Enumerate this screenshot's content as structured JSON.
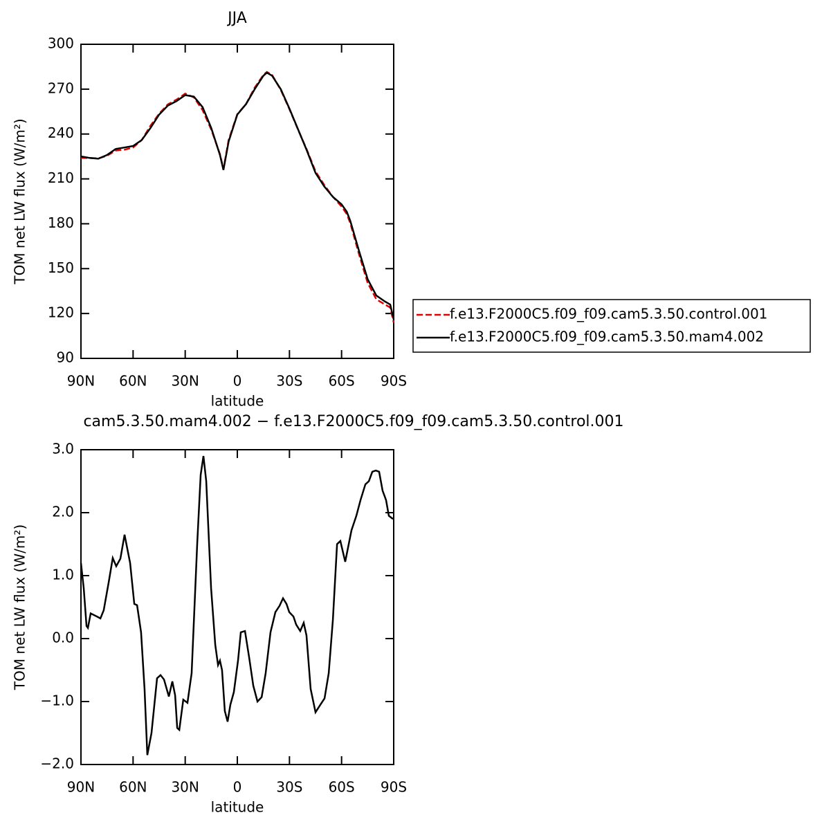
{
  "chart_data": [
    {
      "type": "line",
      "title": "JJA",
      "xlabel": "latitude",
      "ylabel": "TOM net LW flux (W/m²)",
      "xlim": [
        90,
        -90
      ],
      "xticks": [
        {
          "value": 90,
          "label": "90N"
        },
        {
          "value": 60,
          "label": "60N"
        },
        {
          "value": 30,
          "label": "30N"
        },
        0,
        {
          "value": -30,
          "label": "30S"
        },
        {
          "value": -60,
          "label": "60S"
        },
        {
          "value": -90,
          "label": "90S"
        }
      ],
      "ylim": [
        90,
        300
      ],
      "yticks": [
        90,
        120,
        150,
        180,
        210,
        240,
        270,
        300
      ],
      "legend": "right",
      "x": [
        90,
        85,
        80,
        75,
        70,
        65,
        60,
        55,
        50,
        45,
        40,
        35,
        30,
        25,
        20,
        15,
        10,
        8,
        5,
        0,
        -5,
        -10,
        -15,
        -17,
        -20,
        -25,
        -30,
        -35,
        -40,
        -45,
        -50,
        -55,
        -60,
        -63,
        -65,
        -70,
        -75,
        -80,
        -85,
        -88,
        -90
      ],
      "series": [
        {
          "name": "f.e13.F2000C5.f09_f09.cam5.3.50.control.001",
          "color": "#e00000",
          "dash": true,
          "values": [
            224,
            224,
            223.7,
            225.5,
            229,
            229.5,
            231,
            236,
            245.5,
            253.6,
            259.8,
            263,
            267,
            264.5,
            256,
            243,
            226.5,
            216.5,
            236,
            253.3,
            260,
            271,
            279.5,
            281.5,
            279.5,
            269.5,
            256.6,
            242.8,
            229.5,
            215,
            206,
            198,
            191.6,
            186.5,
            180.5,
            159.8,
            140.5,
            129.5,
            126,
            124,
            114
          ]
        },
        {
          "name": "f.e13.F2000C5.f09_f09.cam5.3.50.mam4.002",
          "color": "#000000",
          "dash": false,
          "values": [
            225,
            224,
            223.5,
            226,
            230,
            231,
            232,
            236,
            244,
            253,
            259,
            262,
            266,
            265,
            258,
            244,
            226,
            216,
            235,
            253,
            260,
            270,
            279,
            281,
            279,
            270,
            257,
            243,
            229,
            214,
            205,
            198,
            193,
            188,
            182,
            162,
            143,
            132,
            128,
            126,
            116
          ]
        }
      ]
    },
    {
      "type": "line",
      "title": "cam5.3.50.mam4.002 − f.e13.F2000C5.f09_f09.cam5.3.50.control.001",
      "xlabel": "latitude",
      "ylabel": "TOM net LW flux (W/m²)",
      "xlim": [
        90,
        -90
      ],
      "xticks": [
        {
          "value": 90,
          "label": "90N"
        },
        {
          "value": 60,
          "label": "60N"
        },
        {
          "value": 30,
          "label": "30N"
        },
        0,
        {
          "value": -30,
          "label": "30S"
        },
        {
          "value": -60,
          "label": "60S"
        },
        {
          "value": -90,
          "label": "90S"
        }
      ],
      "ylim": [
        -2,
        3
      ],
      "yticks": [
        {
          "value": -2,
          "label": "−2.0"
        },
        {
          "value": -1,
          "label": "−1.0"
        },
        {
          "value": 0,
          "label": "0.0"
        },
        {
          "value": 1,
          "label": "1.0"
        },
        {
          "value": 2,
          "label": "2.0"
        },
        {
          "value": 3,
          "label": "3.0"
        }
      ],
      "x": [
        90,
        88.4,
        86.8,
        86,
        84.4,
        80.8,
        78.8,
        76.9,
        74,
        71.7,
        69.7,
        67.3,
        64.9,
        61.7,
        59.3,
        57.7,
        55.4,
        53.4,
        51.8,
        49.4,
        46.2,
        44.2,
        42.2,
        39.4,
        37.4,
        35.8,
        34.6,
        33.4,
        31.1,
        28.7,
        26.3,
        23.1,
        21.1,
        19.5,
        17.9,
        15.1,
        12.7,
        11.1,
        10,
        8.8,
        7.2,
        5.6,
        4,
        2,
        -0.4,
        -2,
        -4.4,
        -6.8,
        -9.2,
        -11.6,
        -14,
        -16.3,
        -19.1,
        -21.9,
        -24.3,
        -26.3,
        -28.3,
        -29.9,
        -32.3,
        -33.9,
        -36.2,
        -38.2,
        -39.8,
        -42.2,
        -45,
        -47.8,
        -50.2,
        -52.6,
        -55,
        -57.4,
        -59.3,
        -62.1,
        -65.7,
        -68.5,
        -70.9,
        -73.7,
        -75.7,
        -77.7,
        -79.7,
        -81.6,
        -83.6,
        -85.6,
        -87.2,
        -89.6
      ],
      "series": [
        {
          "color": "#000000",
          "dash": false,
          "values": [
            1.2,
            0.8,
            0.2,
            0.17,
            0.4,
            0.35,
            0.32,
            0.45,
            0.9,
            1.28,
            1.15,
            1.27,
            1.65,
            1.2,
            0.55,
            0.53,
            0.1,
            -0.8,
            -1.85,
            -1.5,
            -0.63,
            -0.58,
            -0.65,
            -0.92,
            -0.68,
            -0.9,
            -1.42,
            -1.45,
            -0.97,
            -1.02,
            -0.55,
            1.5,
            2.6,
            2.9,
            2.5,
            0.8,
            -0.1,
            -0.42,
            -0.35,
            -0.5,
            -1.15,
            -1.32,
            -1.05,
            -0.85,
            -0.35,
            0.1,
            0.12,
            -0.3,
            -0.75,
            -1.0,
            -0.93,
            -0.55,
            0.1,
            0.42,
            0.52,
            0.64,
            0.55,
            0.42,
            0.35,
            0.22,
            0.12,
            0.25,
            0.05,
            -0.8,
            -1.17,
            -1.05,
            -0.95,
            -0.55,
            0.3,
            1.5,
            1.55,
            1.22,
            1.72,
            1.95,
            2.2,
            2.45,
            2.5,
            2.65,
            2.67,
            2.65,
            2.35,
            2.2,
            1.95,
            1.9
          ]
        }
      ]
    }
  ]
}
